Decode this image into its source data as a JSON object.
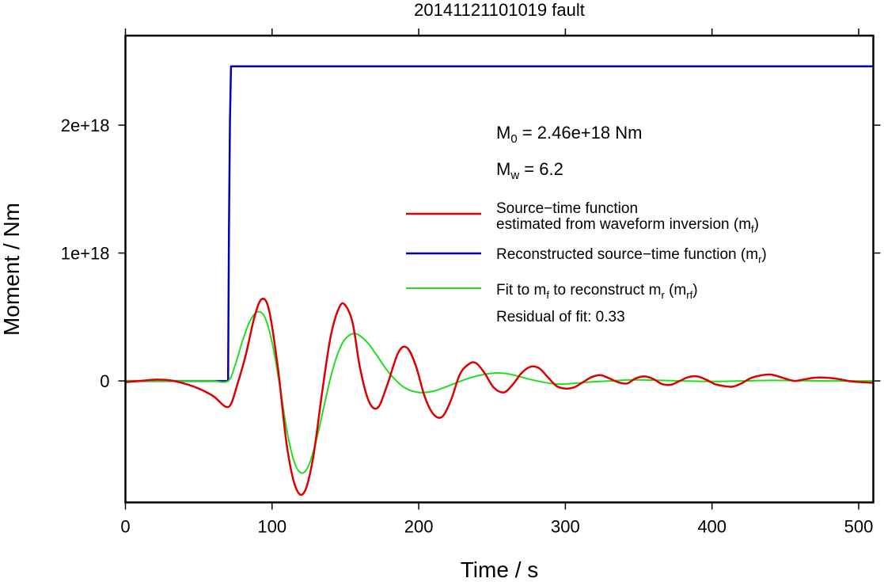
{
  "chart_data": {
    "type": "line",
    "title": "20141121101019 fault",
    "xlabel": "Time / s",
    "ylabel": "Moment / Nm",
    "xlim": [
      0,
      510
    ],
    "ylim": [
      -9.5e+17,
      2.7e+18
    ],
    "x_ticks": [
      0,
      100,
      200,
      300,
      400,
      500
    ],
    "x_tick_labels": [
      "0",
      "100",
      "200",
      "300",
      "400",
      "500"
    ],
    "y_ticks": [
      0,
      1e+18,
      2e+18
    ],
    "y_tick_labels": [
      "0",
      "1e+18",
      "2e+18"
    ],
    "grid": false,
    "legend_position": "right",
    "annotations": {
      "m0": {
        "prefix": "M",
        "sub": "0",
        "rest": " = 2.46e+18 Nm"
      },
      "mw": {
        "prefix": "M",
        "sub": "w",
        "rest": " = 6.2"
      },
      "residual": "Residual of fit: 0.33"
    },
    "legend": [
      {
        "key": "mf",
        "color": "#dd0000",
        "lines": [
          [
            {
              "t": "Source−time function"
            }
          ],
          [
            {
              "t": "estimated from waveform inversion (m"
            },
            {
              "t": "f",
              "sub": true
            },
            {
              "t": ")"
            }
          ]
        ]
      },
      {
        "key": "mr",
        "color": "#0000bb",
        "lines": [
          [
            {
              "t": "Reconstructed source−time function (m"
            },
            {
              "t": "r",
              "sub": true
            },
            {
              "t": ")"
            }
          ]
        ]
      },
      {
        "key": "mrf",
        "color": "#22dd22",
        "lines": [
          [
            {
              "t": "Fit to m"
            },
            {
              "t": "f",
              "sub": true
            },
            {
              "t": " to reconstruct m"
            },
            {
              "t": "r",
              "sub": true
            },
            {
              "t": " (m"
            },
            {
              "t": "rf",
              "sub": true
            },
            {
              "t": ")"
            }
          ]
        ]
      }
    ],
    "series": [
      {
        "key": "mf",
        "color": "#dd0000",
        "x": [
          0,
          10,
          20,
          30,
          40,
          50,
          60,
          68,
          72,
          76,
          82,
          88,
          93,
          98,
          104,
          110,
          116,
          122,
          128,
          134,
          140,
          146,
          150,
          155,
          160,
          166,
          172,
          178,
          186,
          192,
          198,
          204,
          210,
          216,
          222,
          228,
          234,
          239,
          245,
          251,
          258,
          264,
          270,
          276,
          282,
          288,
          294,
          300,
          306,
          312,
          318,
          324,
          330,
          336,
          342,
          348,
          354,
          360,
          366,
          372,
          378,
          384,
          390,
          396,
          402,
          408,
          414,
          420,
          426,
          432,
          440,
          448,
          456,
          462,
          470,
          478,
          486,
          494,
          502,
          510
        ],
        "y": [
          -1e+16,
          0,
          1e+16,
          5000000000000000.0,
          -2e+16,
          -6e+16,
          -1.2e+17,
          -2e+17,
          -1.8e+17,
          -4e+16,
          2e+17,
          5e+17,
          6.4e+17,
          5.5e+17,
          1e+17,
          -5e+17,
          -8.3e+17,
          -8.7e+17,
          -6e+17,
          -1e+17,
          3.5e+17,
          5.8e+17,
          5.9e+17,
          4.5e+17,
          1e+17,
          -1.6e+17,
          -2.1e+17,
          -5e+16,
          2.2e+17,
          2.6e+17,
          1.2e+17,
          -1.2e+17,
          -2.6e+17,
          -2.8e+17,
          -1.5e+17,
          5e+16,
          1.3e+17,
          1.4e+17,
          6e+16,
          -5e+16,
          -9e+16,
          -3e+16,
          6e+16,
          1.1e+17,
          1e+17,
          3e+16,
          -4e+16,
          -6e+16,
          -5e+16,
          -1e+16,
          3e+16,
          4.5e+16,
          2e+16,
          -1e+16,
          -2e+16,
          2e+16,
          3.5e+16,
          1.5e+16,
          -2.5e+16,
          -3e+16,
          0,
          3e+16,
          3.5e+16,
          1e+16,
          -2.5e+16,
          -4e+16,
          -4.5e+16,
          -2e+16,
          2e+16,
          4e+16,
          5e+16,
          2.5e+16,
          0,
          1e+16,
          2.5e+16,
          2.5e+16,
          1.5e+16,
          -2000000000000000.0,
          -1e+16,
          -1.5e+16
        ]
      },
      {
        "key": "mr",
        "color": "#0000bb",
        "x": [
          0,
          70,
          70.6,
          71.3,
          72,
          510
        ],
        "y": [
          0,
          0,
          1.2e+18,
          2.05e+18,
          2.46e+18,
          2.46e+18
        ]
      },
      {
        "key": "mrf",
        "color": "#22dd22",
        "x": [
          0,
          10,
          20,
          30,
          40,
          50,
          60,
          70,
          75,
          80,
          85,
          90,
          95,
          100,
          105,
          110,
          115,
          120,
          125,
          130,
          135,
          140,
          145,
          150,
          157,
          165,
          172,
          180,
          190,
          200,
          210,
          220,
          230,
          240,
          250,
          258,
          265,
          275,
          285,
          295,
          305,
          315,
          330,
          345,
          360,
          380,
          400,
          420,
          440,
          460,
          480,
          500,
          510
        ],
        "y": [
          0,
          0,
          0,
          0,
          0,
          0,
          0,
          0,
          1.3e+17,
          3.2e+17,
          4.7e+17,
          5.4e+17,
          5e+17,
          3e+17,
          -2e+16,
          -3.8e+17,
          -6.3e+17,
          -7.2e+17,
          -6.6e+17,
          -4.7e+17,
          -2.2e+17,
          3e+16,
          2.2e+17,
          3.3e+17,
          3.7e+17,
          3e+17,
          1.9e+17,
          6e+16,
          -5e+16,
          -9e+16,
          -8e+16,
          -4e+16,
          5000000000000000.0,
          4e+16,
          6e+16,
          6e+16,
          4.5e+16,
          1.5e+16,
          -1e+16,
          -2.5e+16,
          -2e+16,
          -1e+16,
          0,
          8000000000000000.0,
          6000000000000000.0,
          0,
          -4000000000000000.0,
          0,
          4000000000000000.0,
          2000000000000000.0,
          0,
          0,
          0
        ]
      }
    ]
  }
}
